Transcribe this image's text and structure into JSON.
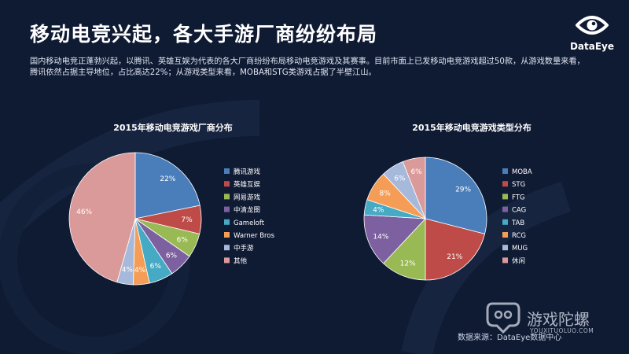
{
  "header": {
    "title": "移动电竞兴起，各大手游厂商纷纷布局",
    "brand": "DataEye"
  },
  "intro_lines": [
    "国内移动电竞正蓬勃兴起，以腾讯、英雄互娱为代表的各大厂商纷纷布局移动电竞游戏及其赛事。目前市面上已发移动电竞游戏超过50款，从游戏数量来看，",
    "腾讯依然占据主导地位，占比高达22%；从游戏类型来看，MOBA和STG类游戏占据了半壁江山。"
  ],
  "source": "数据来源：DataEye数据中心",
  "watermark": {
    "name": "游戏陀螺",
    "url": "YOUXITUOLUO.COM"
  },
  "chart_data": [
    {
      "type": "pie",
      "title": "2015年移动电竞游戏厂商分布",
      "categories": [
        "腾讯游戏",
        "英雄互娱",
        "网易游戏",
        "中清龙图",
        "Gameloft",
        "Warner Bros",
        "中手游",
        "其他"
      ],
      "values": [
        22,
        7,
        6,
        6,
        6,
        4,
        4,
        46
      ],
      "data_labels": [
        "22%",
        "7%",
        "6%",
        "6%",
        "6%",
        "4%",
        "4%",
        "46%"
      ],
      "colors": [
        "#4a7ebb",
        "#be4b48",
        "#98b954",
        "#7d60a0",
        "#46aac5",
        "#f59d56",
        "#a7b9da",
        "#da9a9a"
      ],
      "legend": "right"
    },
    {
      "type": "pie",
      "title": "2015年移动电竞游戏类型分布",
      "categories": [
        "MOBA",
        "STG",
        "FTG",
        "CAG",
        "TAB",
        "RCG",
        "MUG",
        "休闲"
      ],
      "values": [
        29,
        21,
        12,
        14,
        4,
        8,
        6,
        6
      ],
      "data_labels": [
        "29%",
        "21%",
        "12%",
        "14%",
        "4%",
        "8%",
        "6%",
        "6%"
      ],
      "colors": [
        "#4a7ebb",
        "#be4b48",
        "#98b954",
        "#7d60a0",
        "#46aac5",
        "#f59d56",
        "#a7b9da",
        "#da9a9a"
      ],
      "legend": "right"
    }
  ]
}
